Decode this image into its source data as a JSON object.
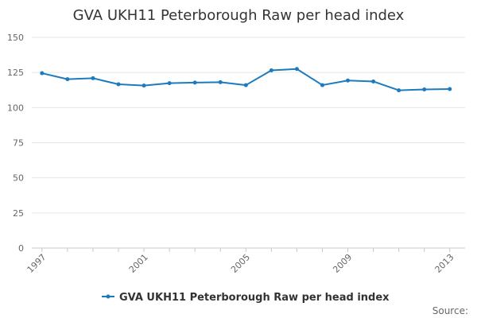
{
  "chart_data": {
    "type": "line",
    "title": "GVA UKH11 Peterborough Raw per head index",
    "xlabel": "",
    "ylabel": "",
    "x": [
      1997,
      1998,
      1999,
      2000,
      2001,
      2002,
      2003,
      2004,
      2005,
      2006,
      2007,
      2008,
      2009,
      2010,
      2011,
      2012,
      2013
    ],
    "x_tick_labels": [
      "1997",
      "2001",
      "2005",
      "2009",
      "2013"
    ],
    "x_tick_values": [
      1997,
      2001,
      2005,
      2009,
      2013
    ],
    "y_ticks": [
      0,
      25,
      50,
      75,
      100,
      125,
      150
    ],
    "ylim": [
      0,
      150
    ],
    "xlim": [
      1996.6,
      2013.6
    ],
    "grid": true,
    "legend_position": "bottom",
    "series": [
      {
        "name": "GVA UKH11 Peterborough Raw per head index",
        "values": [
          124.5,
          120.2,
          120.9,
          116.6,
          115.7,
          117.4,
          117.8,
          118.1,
          116.0,
          126.5,
          127.5,
          116.0,
          119.3,
          118.6,
          112.3,
          112.9,
          113.2
        ],
        "color": "#1c7bbf"
      }
    ]
  },
  "source_label": "Source:"
}
